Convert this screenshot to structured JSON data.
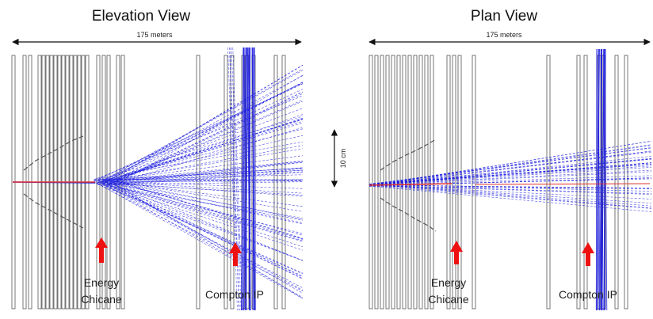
{
  "elevation": {
    "title": "Elevation View",
    "length_label": "175 meters",
    "labels": {
      "energy_line1": "Energy",
      "energy_line2": "Chicane",
      "compton": "Compton IP"
    }
  },
  "plan": {
    "title": "Plan View",
    "length_label": "175 meters",
    "labels": {
      "energy_line1": "Energy",
      "energy_line2": "Chicane",
      "compton": "Compton IP"
    }
  },
  "scale_bar": {
    "label": "10 cm"
  },
  "colors": {
    "tracks": "#1f1fe0",
    "beam": "#e03030",
    "arrow": "#ee1111",
    "detector_planes": "#555555"
  }
}
